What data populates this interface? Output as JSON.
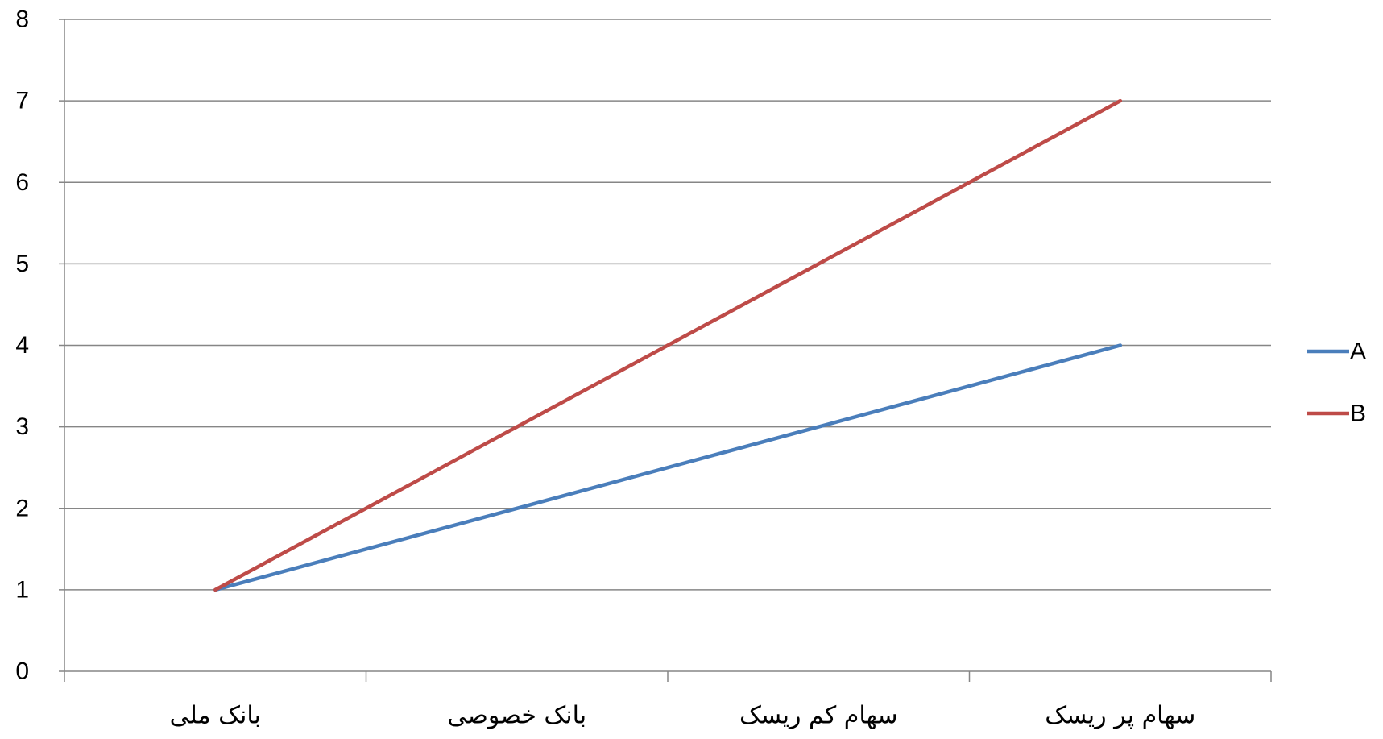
{
  "chart_data": {
    "type": "line",
    "categories": [
      "بانک ملی",
      "بانک خصوصی",
      "سهام کم ریسک",
      "سهام پر ریسک"
    ],
    "series": [
      {
        "name": "A",
        "values": [
          1,
          2,
          3,
          4
        ],
        "color": "#4a7ebb"
      },
      {
        "name": "B",
        "values": [
          1,
          3,
          5,
          7
        ],
        "color": "#be4b48"
      }
    ],
    "y_ticks": [
      "0",
      "1",
      "2",
      "3",
      "4",
      "5",
      "6",
      "7",
      "8"
    ],
    "ylim": [
      0,
      8
    ],
    "grid": true,
    "legend_position": "right",
    "title": "",
    "xlabel": "",
    "ylabel": ""
  }
}
